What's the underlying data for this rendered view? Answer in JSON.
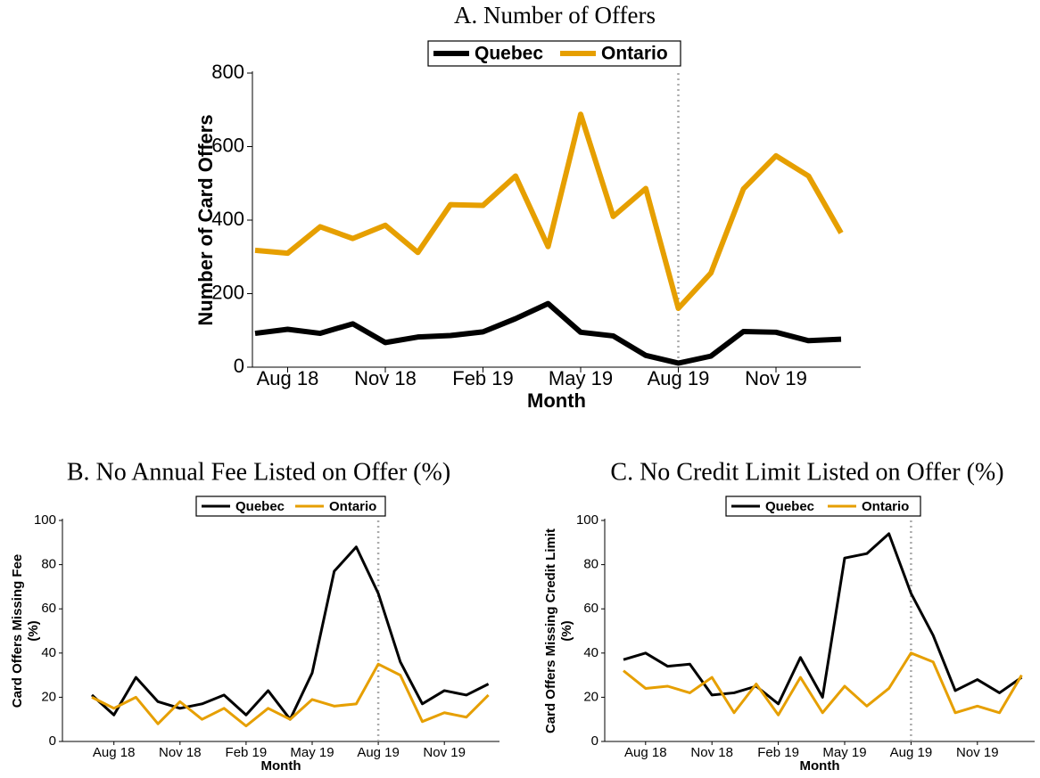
{
  "chart_data": [
    {
      "type": "line",
      "title": "A. Number of Offers",
      "xlabel": "Month",
      "ylabel": [
        "Number of Card Offers"
      ],
      "categories": [
        null,
        "Aug 18",
        null,
        null,
        "Nov 18",
        null,
        null,
        "Feb 19",
        null,
        null,
        "May 19",
        null,
        null,
        "Aug 19",
        null,
        null,
        "Nov 19",
        null,
        null
      ],
      "series": [
        {
          "name": "Quebec",
          "color": "#000000",
          "values": [
            92,
            103,
            92,
            118,
            67,
            82,
            86,
            96,
            132,
            173,
            95,
            85,
            32,
            11,
            30,
            97,
            95,
            72,
            76
          ]
        },
        {
          "name": "Ontario",
          "color": "#E69F00",
          "values": [
            318,
            310,
            382,
            350,
            386,
            312,
            442,
            440,
            520,
            328,
            688,
            410,
            486,
            160,
            256,
            485,
            575,
            520,
            365
          ]
        }
      ],
      "ylim": [
        0,
        800
      ],
      "yticks": [
        0,
        200,
        400,
        600,
        800
      ],
      "grid": false,
      "vline": "Aug 19",
      "legend": "top"
    },
    {
      "type": "line",
      "title": "B. No Annual Fee Listed on Offer (%)",
      "xlabel": "Month",
      "ylabel": [
        "Card Offers Missing Fee",
        "(%)"
      ],
      "categories": [
        null,
        "Aug 18",
        null,
        null,
        "Nov 18",
        null,
        null,
        "Feb 19",
        null,
        null,
        "May 19",
        null,
        null,
        "Aug 19",
        null,
        null,
        "Nov 19",
        null,
        null
      ],
      "series": [
        {
          "name": "Quebec",
          "color": "#000000",
          "values": [
            21,
            12,
            29,
            18,
            15,
            17,
            21,
            12,
            23,
            10,
            31,
            77,
            88,
            67,
            36,
            17,
            23,
            21,
            26
          ]
        },
        {
          "name": "Ontario",
          "color": "#E69F00",
          "values": [
            20,
            15,
            20,
            8,
            18,
            10,
            15,
            7,
            15,
            10,
            19,
            16,
            17,
            35,
            30,
            9,
            13,
            11,
            21
          ]
        }
      ],
      "ylim": [
        0,
        100
      ],
      "yticks": [
        0,
        20,
        40,
        60,
        80,
        100
      ],
      "grid": false,
      "vline": "Aug 19",
      "legend": "top"
    },
    {
      "type": "line",
      "title": "C. No Credit Limit Listed on Offer (%)",
      "xlabel": "Month",
      "ylabel": [
        "Card Offers Missing Credit Limit",
        "(%)"
      ],
      "categories": [
        null,
        "Aug 18",
        null,
        null,
        "Nov 18",
        null,
        null,
        "Feb 19",
        null,
        null,
        "May 19",
        null,
        null,
        "Aug 19",
        null,
        null,
        "Nov 19",
        null,
        null
      ],
      "series": [
        {
          "name": "Quebec",
          "color": "#000000",
          "values": [
            37,
            40,
            34,
            35,
            21,
            22,
            25,
            17,
            38,
            20,
            83,
            85,
            94,
            67,
            48,
            23,
            28,
            22,
            29
          ]
        },
        {
          "name": "Ontario",
          "color": "#E69F00",
          "values": [
            32,
            24,
            25,
            22,
            29,
            13,
            26,
            12,
            29,
            13,
            25,
            16,
            24,
            40,
            36,
            13,
            16,
            13,
            30
          ]
        }
      ],
      "ylim": [
        0,
        100
      ],
      "yticks": [
        0,
        20,
        40,
        60,
        80,
        100
      ],
      "grid": false,
      "vline": "Aug 19",
      "legend": "top"
    }
  ]
}
